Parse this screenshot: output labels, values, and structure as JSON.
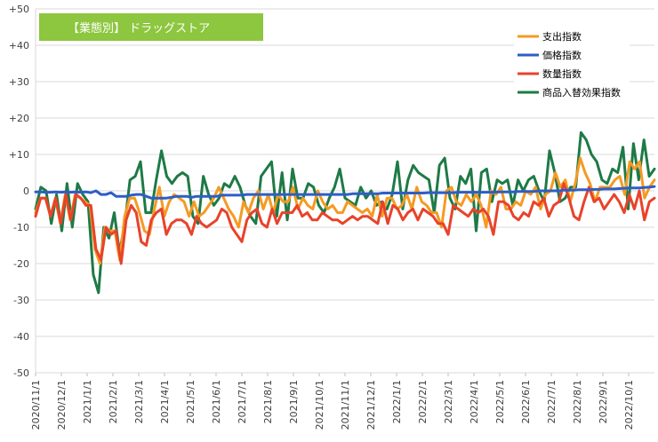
{
  "chart_data": {
    "type": "line",
    "title": "【業態別】 ドラッグストア",
    "title_box_color": "#8dc63f",
    "ylim": [
      -50,
      50
    ],
    "y_ticks": [
      "+50",
      "+40",
      "+30",
      "+20",
      "+10",
      "0",
      "-10",
      "-20",
      "-30",
      "-40",
      "-50"
    ],
    "y_tick_values": [
      50,
      40,
      30,
      20,
      10,
      0,
      -10,
      -20,
      -30,
      -40,
      -50
    ],
    "x_tick_labels": [
      "2020/11/1",
      "2020/12/1",
      "2021/1/1",
      "2021/2/1",
      "2021/3/1",
      "2021/4/1",
      "2021/5/1",
      "2021/6/1",
      "2021/7/1",
      "2021/8/1",
      "2021/9/1",
      "2021/10/1",
      "2021/11/1",
      "2021/12/1",
      "2022/1/1",
      "2022/2/1",
      "2022/3/1",
      "2022/4/1",
      "2022/5/1",
      "2022/6/1",
      "2022/7/1",
      "2022/8/1",
      "2022/9/1",
      "2022/10/1"
    ],
    "grid": true,
    "legend_position": "top-right",
    "series": [
      {
        "name": "支出指数",
        "color": "#f59a23",
        "values": [
          -6,
          -2,
          -2,
          -7,
          -2,
          -9,
          -1,
          -8,
          -1,
          -2,
          -3,
          -4,
          -16,
          -20,
          -10,
          -11,
          -11,
          -19,
          -7,
          -2,
          -2,
          -6,
          -11,
          -12,
          -5,
          1,
          -7,
          -3,
          -1,
          -2,
          -3,
          -7,
          -3,
          -7,
          -6,
          -4,
          -2,
          1,
          -2,
          -5,
          -7,
          -10,
          -3,
          -6,
          -2,
          0,
          -5,
          -1,
          -6,
          -1,
          -3,
          -3,
          1,
          -5,
          -2,
          -4,
          -5,
          0,
          -3,
          -5,
          -4,
          -6,
          -6,
          -3,
          -4,
          -5,
          -6,
          -5,
          -7,
          -1,
          -7,
          -2,
          -2,
          -5,
          -4,
          -1,
          -5,
          1,
          -3,
          -4,
          -6,
          -6,
          -10,
          0,
          1,
          -3,
          -4,
          -1,
          -3,
          -1,
          -4,
          -10,
          0,
          -1,
          1,
          -5,
          -5,
          -3,
          -4,
          0,
          -1,
          1,
          -5,
          -1,
          0,
          5,
          1,
          3,
          -3,
          2,
          9,
          5,
          2,
          -3,
          1,
          1,
          1,
          3,
          4,
          -1,
          8,
          6,
          8,
          -2,
          1,
          3
        ]
      },
      {
        "name": "価格指数",
        "color": "#2e5ec6",
        "values": [
          -0.3,
          -0.3,
          -0.4,
          -0.4,
          -0.3,
          -0.4,
          -0.3,
          -0.4,
          -0.3,
          -0.4,
          -0.3,
          -0.5,
          0,
          -1,
          -1,
          -0.5,
          -1.5,
          -1.5,
          -1.5,
          -1.2,
          -1,
          -1,
          -1.5,
          -2,
          -2,
          -2,
          -2,
          -1.8,
          -1.5,
          -1.5,
          -1.5,
          -1.8,
          -1.5,
          -1.5,
          -1.5,
          -1.5,
          -1.5,
          -1.2,
          -1.2,
          -1.2,
          -1.2,
          -1.2,
          -1,
          -1,
          -1,
          -1,
          -1,
          -1,
          -1,
          -1,
          -1,
          -1,
          -1,
          -1,
          -1,
          -1,
          -1,
          -1,
          -1,
          -1,
          -1,
          -1,
          -1,
          -0.8,
          -0.8,
          -0.8,
          -0.8,
          -0.8,
          -0.8,
          -0.6,
          -0.6,
          -0.6,
          -0.6,
          -0.6,
          -0.6,
          -0.6,
          -0.6,
          -0.6,
          -0.5,
          -0.5,
          -0.5,
          -0.5,
          -0.5,
          -0.5,
          -0.4,
          -0.4,
          -0.4,
          -0.4,
          -0.4,
          -0.4,
          -0.4,
          -0.4,
          -0.3,
          -0.3,
          -0.3,
          -0.3,
          -0.2,
          -0.2,
          -0.2,
          -0.2,
          0,
          0,
          0,
          0,
          0,
          0.2,
          0.2,
          0.2,
          0.3,
          0.3,
          0.3,
          0.4,
          0.4,
          0.5,
          0.5,
          0.5,
          0.6,
          0.7,
          0.8,
          0.8,
          0.8,
          0.9,
          1,
          1.2
        ]
      },
      {
        "name": "数量指数",
        "color": "#e8432a",
        "values": [
          -7,
          -2,
          -2,
          -7,
          -2,
          -9,
          -1,
          -8,
          -1,
          -2,
          -4,
          -4,
          -16,
          -19,
          -10,
          -12,
          -11,
          -20,
          -8,
          -4,
          -6,
          -14,
          -15,
          -8,
          -6,
          -5,
          -12,
          -9,
          -8,
          -8,
          -9,
          -12,
          -7,
          -9,
          -10,
          -9,
          -8,
          -5,
          -6,
          -10,
          -12,
          -14,
          -8,
          -6,
          -5,
          -9,
          -10,
          -5,
          -9,
          -6,
          -6,
          -6,
          -4,
          -7,
          -6,
          -8,
          -8,
          -6,
          -7,
          -8,
          -8,
          -9,
          -8,
          -7,
          -8,
          -7,
          -7,
          -8,
          -9,
          -3,
          -9,
          -4,
          -5,
          -8,
          -6,
          -5,
          -8,
          -5,
          -6,
          -7,
          -9,
          -9,
          -12,
          -4,
          -5,
          -6,
          -7,
          -5,
          -6,
          -5,
          -7,
          -12,
          -3,
          -3,
          -4,
          -7,
          -8,
          -6,
          -7,
          -3,
          -4,
          -2,
          -7,
          -4,
          -3,
          2,
          -2,
          -7,
          -8,
          -3,
          1,
          -3,
          -2,
          -5,
          -3,
          -1,
          -3,
          -6,
          -1,
          -5,
          0,
          -8,
          -3,
          -2
        ]
      },
      {
        "name": "商品入替効果指数",
        "color": "#1e7a46",
        "values": [
          -5,
          1,
          0,
          -9,
          -1,
          -11,
          2,
          -10,
          2,
          -1,
          -3,
          -23,
          -28,
          -10,
          -13,
          -6,
          -17,
          -9,
          3,
          4,
          8,
          -6,
          -6,
          3,
          11,
          4,
          2,
          4,
          5,
          4,
          -7,
          -9,
          4,
          -1,
          -4,
          -2,
          2,
          1,
          4,
          1,
          -4,
          -7,
          -9,
          4,
          6,
          8,
          -7,
          5,
          -8,
          6,
          -2,
          -2,
          2,
          1,
          -4,
          -6,
          -2,
          1,
          6,
          -2,
          -3,
          -4,
          1,
          -2,
          0,
          -4,
          -3,
          -5,
          -1,
          8,
          -5,
          3,
          7,
          5,
          4,
          3,
          -6,
          7,
          9,
          -2,
          -5,
          4,
          2,
          6,
          -11,
          5,
          6,
          -3,
          3,
          2,
          3,
          -4,
          3,
          0,
          3,
          4,
          0,
          -3,
          11,
          5,
          -3,
          -2,
          1,
          1,
          16,
          14,
          10,
          8,
          3,
          2,
          6,
          5,
          12,
          -5,
          13,
          3,
          14,
          4,
          6
        ]
      }
    ]
  }
}
